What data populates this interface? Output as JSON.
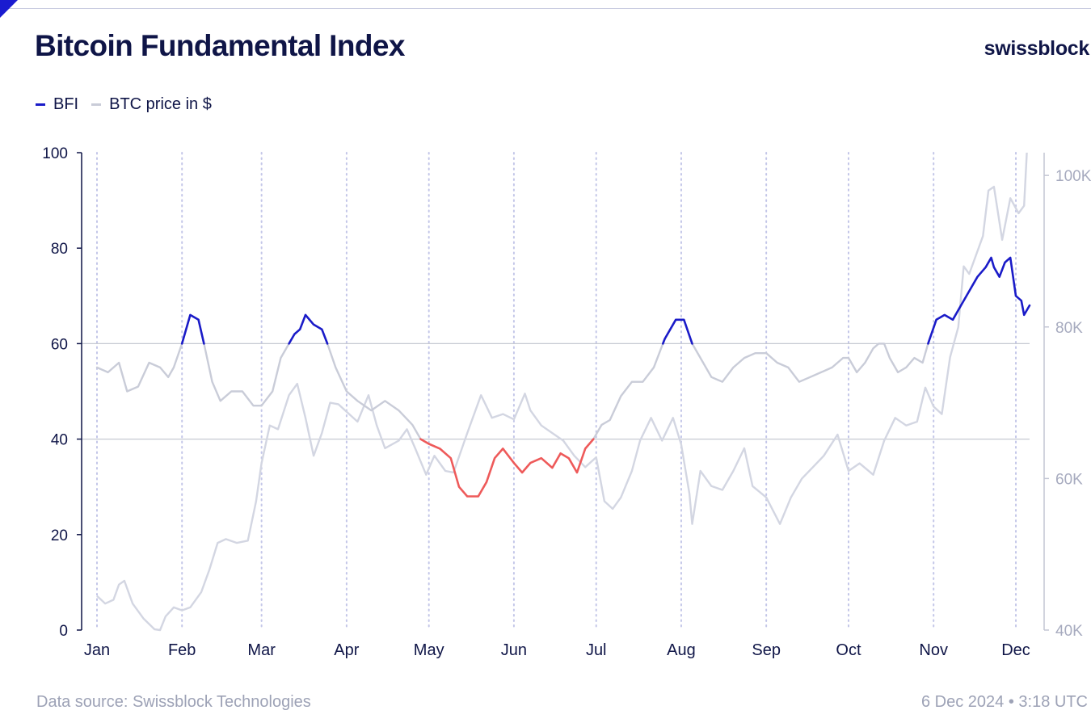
{
  "header": {
    "title": "Bitcoin Fundamental Index",
    "brand": "swissblock"
  },
  "legend": {
    "items": [
      {
        "label": "BFI",
        "color": "#1a1bc8"
      },
      {
        "label": "BTC price in $",
        "color": "#c9ccd8"
      }
    ]
  },
  "footer": {
    "source": "Data source: Swissblock Technologies",
    "timestamp": "6 Dec 2024 • 3:18 UTC"
  },
  "colors": {
    "bfi_high": "#1a1bc8",
    "bfi_low": "#ee5a5a",
    "bfi_mid": "#c9ccd8",
    "btc": "#d3d6e2",
    "reference_lines": "#c6c9d2",
    "month_gridlines": "#c3c6e8"
  },
  "chart_data": {
    "type": "line",
    "title": "Bitcoin Fundamental Index",
    "x_axis": {
      "type": "date",
      "start": "2024-01-01",
      "end": "2024-12-06",
      "tick_labels": [
        "Jan",
        "Feb",
        "Mar",
        "Apr",
        "May",
        "Jun",
        "Jul",
        "Aug",
        "Sep",
        "Oct",
        "Nov",
        "Dec"
      ],
      "tick_dates": [
        "2024-01-01",
        "2024-02-01",
        "2024-03-01",
        "2024-04-01",
        "2024-05-01",
        "2024-06-01",
        "2024-07-01",
        "2024-08-01",
        "2024-09-01",
        "2024-10-01",
        "2024-11-01",
        "2024-12-01"
      ],
      "gridlines": "dotted"
    },
    "y_left": {
      "range": [
        0,
        100
      ],
      "ticks": [
        0,
        20,
        40,
        60,
        80,
        100
      ],
      "tick_labels": [
        "0",
        "20",
        "40",
        "60",
        "80",
        "100"
      ],
      "reference_lines": [
        40,
        60
      ]
    },
    "y_right": {
      "range": [
        40000,
        103000
      ],
      "ticks": [
        40000,
        60000,
        80000,
        100000
      ],
      "tick_labels": [
        "40K",
        "60K",
        "80K",
        "100K"
      ]
    },
    "thresholds": {
      "high": 60,
      "low": 40
    },
    "series": [
      {
        "name": "BFI",
        "axis": "left",
        "points": [
          [
            "2024-01-01",
            55
          ],
          [
            "2024-01-05",
            54
          ],
          [
            "2024-01-09",
            56
          ],
          [
            "2024-01-12",
            50
          ],
          [
            "2024-01-16",
            51
          ],
          [
            "2024-01-20",
            56
          ],
          [
            "2024-01-24",
            55
          ],
          [
            "2024-01-27",
            53
          ],
          [
            "2024-01-29",
            55
          ],
          [
            "2024-02-01",
            60
          ],
          [
            "2024-02-04",
            66
          ],
          [
            "2024-02-07",
            65
          ],
          [
            "2024-02-09",
            60
          ],
          [
            "2024-02-12",
            52
          ],
          [
            "2024-02-15",
            48
          ],
          [
            "2024-02-19",
            50
          ],
          [
            "2024-02-23",
            50
          ],
          [
            "2024-02-27",
            47
          ],
          [
            "2024-03-01",
            47
          ],
          [
            "2024-03-05",
            50
          ],
          [
            "2024-03-08",
            57
          ],
          [
            "2024-03-11",
            60
          ],
          [
            "2024-03-13",
            62
          ],
          [
            "2024-03-15",
            63
          ],
          [
            "2024-03-17",
            66
          ],
          [
            "2024-03-20",
            64
          ],
          [
            "2024-03-23",
            63
          ],
          [
            "2024-03-25",
            60
          ],
          [
            "2024-03-28",
            55
          ],
          [
            "2024-04-01",
            50
          ],
          [
            "2024-04-05",
            48
          ],
          [
            "2024-04-10",
            46
          ],
          [
            "2024-04-15",
            48
          ],
          [
            "2024-04-20",
            46
          ],
          [
            "2024-04-25",
            43
          ],
          [
            "2024-04-28",
            40
          ],
          [
            "2024-05-01",
            39
          ],
          [
            "2024-05-05",
            38
          ],
          [
            "2024-05-09",
            36
          ],
          [
            "2024-05-12",
            30
          ],
          [
            "2024-05-15",
            28
          ],
          [
            "2024-05-19",
            28
          ],
          [
            "2024-05-22",
            31
          ],
          [
            "2024-05-25",
            36
          ],
          [
            "2024-05-28",
            38
          ],
          [
            "2024-06-01",
            35
          ],
          [
            "2024-06-04",
            33
          ],
          [
            "2024-06-07",
            35
          ],
          [
            "2024-06-11",
            36
          ],
          [
            "2024-06-15",
            34
          ],
          [
            "2024-06-18",
            37
          ],
          [
            "2024-06-21",
            36
          ],
          [
            "2024-06-24",
            33
          ],
          [
            "2024-06-27",
            38
          ],
          [
            "2024-06-30",
            40
          ],
          [
            "2024-07-03",
            43
          ],
          [
            "2024-07-06",
            44
          ],
          [
            "2024-07-10",
            49
          ],
          [
            "2024-07-14",
            52
          ],
          [
            "2024-07-18",
            52
          ],
          [
            "2024-07-22",
            55
          ],
          [
            "2024-07-26",
            61
          ],
          [
            "2024-07-30",
            65
          ],
          [
            "2024-08-02",
            65
          ],
          [
            "2024-08-05",
            60
          ],
          [
            "2024-08-08",
            57
          ],
          [
            "2024-08-12",
            53
          ],
          [
            "2024-08-16",
            52
          ],
          [
            "2024-08-20",
            55
          ],
          [
            "2024-08-24",
            57
          ],
          [
            "2024-08-28",
            58
          ],
          [
            "2024-09-01",
            58
          ],
          [
            "2024-09-05",
            56
          ],
          [
            "2024-09-09",
            55
          ],
          [
            "2024-09-13",
            52
          ],
          [
            "2024-09-17",
            53
          ],
          [
            "2024-09-21",
            54
          ],
          [
            "2024-09-25",
            55
          ],
          [
            "2024-09-29",
            57
          ],
          [
            "2024-10-01",
            57
          ],
          [
            "2024-10-04",
            54
          ],
          [
            "2024-10-07",
            56
          ],
          [
            "2024-10-10",
            59
          ],
          [
            "2024-10-12",
            60
          ],
          [
            "2024-10-14",
            60
          ],
          [
            "2024-10-16",
            57
          ],
          [
            "2024-10-19",
            54
          ],
          [
            "2024-10-22",
            55
          ],
          [
            "2024-10-25",
            57
          ],
          [
            "2024-10-28",
            56
          ],
          [
            "2024-10-30",
            60
          ],
          [
            "2024-11-02",
            65
          ],
          [
            "2024-11-05",
            66
          ],
          [
            "2024-11-08",
            65
          ],
          [
            "2024-11-11",
            68
          ],
          [
            "2024-11-14",
            71
          ],
          [
            "2024-11-17",
            74
          ],
          [
            "2024-11-20",
            76
          ],
          [
            "2024-11-22",
            78
          ],
          [
            "2024-11-23",
            76
          ],
          [
            "2024-11-25",
            74
          ],
          [
            "2024-11-27",
            77
          ],
          [
            "2024-11-29",
            78
          ],
          [
            "2024-12-01",
            70
          ],
          [
            "2024-12-03",
            69
          ],
          [
            "2024-12-04",
            66
          ],
          [
            "2024-12-06",
            68
          ]
        ]
      },
      {
        "name": "BTC price in $",
        "axis": "right",
        "points": [
          [
            "2024-01-01",
            44500
          ],
          [
            "2024-01-04",
            43500
          ],
          [
            "2024-01-07",
            44000
          ],
          [
            "2024-01-09",
            46000
          ],
          [
            "2024-01-11",
            46500
          ],
          [
            "2024-01-14",
            43500
          ],
          [
            "2024-01-18",
            41500
          ],
          [
            "2024-01-22",
            40100
          ],
          [
            "2024-01-24",
            40000
          ],
          [
            "2024-01-26",
            41800
          ],
          [
            "2024-01-29",
            43000
          ],
          [
            "2024-02-01",
            42600
          ],
          [
            "2024-02-04",
            43000
          ],
          [
            "2024-02-08",
            45000
          ],
          [
            "2024-02-11",
            48000
          ],
          [
            "2024-02-14",
            51500
          ],
          [
            "2024-02-17",
            52000
          ],
          [
            "2024-02-21",
            51500
          ],
          [
            "2024-02-25",
            51800
          ],
          [
            "2024-02-28",
            57000
          ],
          [
            "2024-03-01",
            62000
          ],
          [
            "2024-03-04",
            67000
          ],
          [
            "2024-03-07",
            66500
          ],
          [
            "2024-03-11",
            71000
          ],
          [
            "2024-03-14",
            72500
          ],
          [
            "2024-03-17",
            68000
          ],
          [
            "2024-03-20",
            63000
          ],
          [
            "2024-03-23",
            66000
          ],
          [
            "2024-03-26",
            70000
          ],
          [
            "2024-03-29",
            69800
          ],
          [
            "2024-04-01",
            68800
          ],
          [
            "2024-04-05",
            67500
          ],
          [
            "2024-04-09",
            71000
          ],
          [
            "2024-04-12",
            67000
          ],
          [
            "2024-04-15",
            64000
          ],
          [
            "2024-04-20",
            65000
          ],
          [
            "2024-04-23",
            66500
          ],
          [
            "2024-04-26",
            64000
          ],
          [
            "2024-04-30",
            60500
          ],
          [
            "2024-05-03",
            63000
          ],
          [
            "2024-05-07",
            61000
          ],
          [
            "2024-05-10",
            60800
          ],
          [
            "2024-05-15",
            66000
          ],
          [
            "2024-05-20",
            71000
          ],
          [
            "2024-05-24",
            68000
          ],
          [
            "2024-05-28",
            68500
          ],
          [
            "2024-06-01",
            67800
          ],
          [
            "2024-06-05",
            71200
          ],
          [
            "2024-06-07",
            69000
          ],
          [
            "2024-06-11",
            67000
          ],
          [
            "2024-06-15",
            66000
          ],
          [
            "2024-06-19",
            65000
          ],
          [
            "2024-06-23",
            63000
          ],
          [
            "2024-06-27",
            61500
          ],
          [
            "2024-07-01",
            62800
          ],
          [
            "2024-07-04",
            57000
          ],
          [
            "2024-07-07",
            56000
          ],
          [
            "2024-07-10",
            57500
          ],
          [
            "2024-07-14",
            61000
          ],
          [
            "2024-07-17",
            65000
          ],
          [
            "2024-07-21",
            68000
          ],
          [
            "2024-07-25",
            65000
          ],
          [
            "2024-07-29",
            68000
          ],
          [
            "2024-08-01",
            64500
          ],
          [
            "2024-08-04",
            58000
          ],
          [
            "2024-08-05",
            54000
          ],
          [
            "2024-08-08",
            61000
          ],
          [
            "2024-08-12",
            59000
          ],
          [
            "2024-08-16",
            58500
          ],
          [
            "2024-08-20",
            61000
          ],
          [
            "2024-08-24",
            64000
          ],
          [
            "2024-08-27",
            59000
          ],
          [
            "2024-09-01",
            57500
          ],
          [
            "2024-09-06",
            54000
          ],
          [
            "2024-09-10",
            57500
          ],
          [
            "2024-09-14",
            60000
          ],
          [
            "2024-09-18",
            61500
          ],
          [
            "2024-09-22",
            63000
          ],
          [
            "2024-09-27",
            65800
          ],
          [
            "2024-10-01",
            61000
          ],
          [
            "2024-10-05",
            62000
          ],
          [
            "2024-10-10",
            60500
          ],
          [
            "2024-10-14",
            65000
          ],
          [
            "2024-10-18",
            68000
          ],
          [
            "2024-10-22",
            67000
          ],
          [
            "2024-10-26",
            67500
          ],
          [
            "2024-10-29",
            72000
          ],
          [
            "2024-11-01",
            69500
          ],
          [
            "2024-11-04",
            68500
          ],
          [
            "2024-11-07",
            76000
          ],
          [
            "2024-11-10",
            80000
          ],
          [
            "2024-11-12",
            88000
          ],
          [
            "2024-11-14",
            87000
          ],
          [
            "2024-11-17",
            90000
          ],
          [
            "2024-11-19",
            92000
          ],
          [
            "2024-11-21",
            98000
          ],
          [
            "2024-11-23",
            98500
          ],
          [
            "2024-11-26",
            91500
          ],
          [
            "2024-11-29",
            97000
          ],
          [
            "2024-12-02",
            95000
          ],
          [
            "2024-12-04",
            96000
          ],
          [
            "2024-12-05",
            103000
          ]
        ]
      }
    ]
  }
}
